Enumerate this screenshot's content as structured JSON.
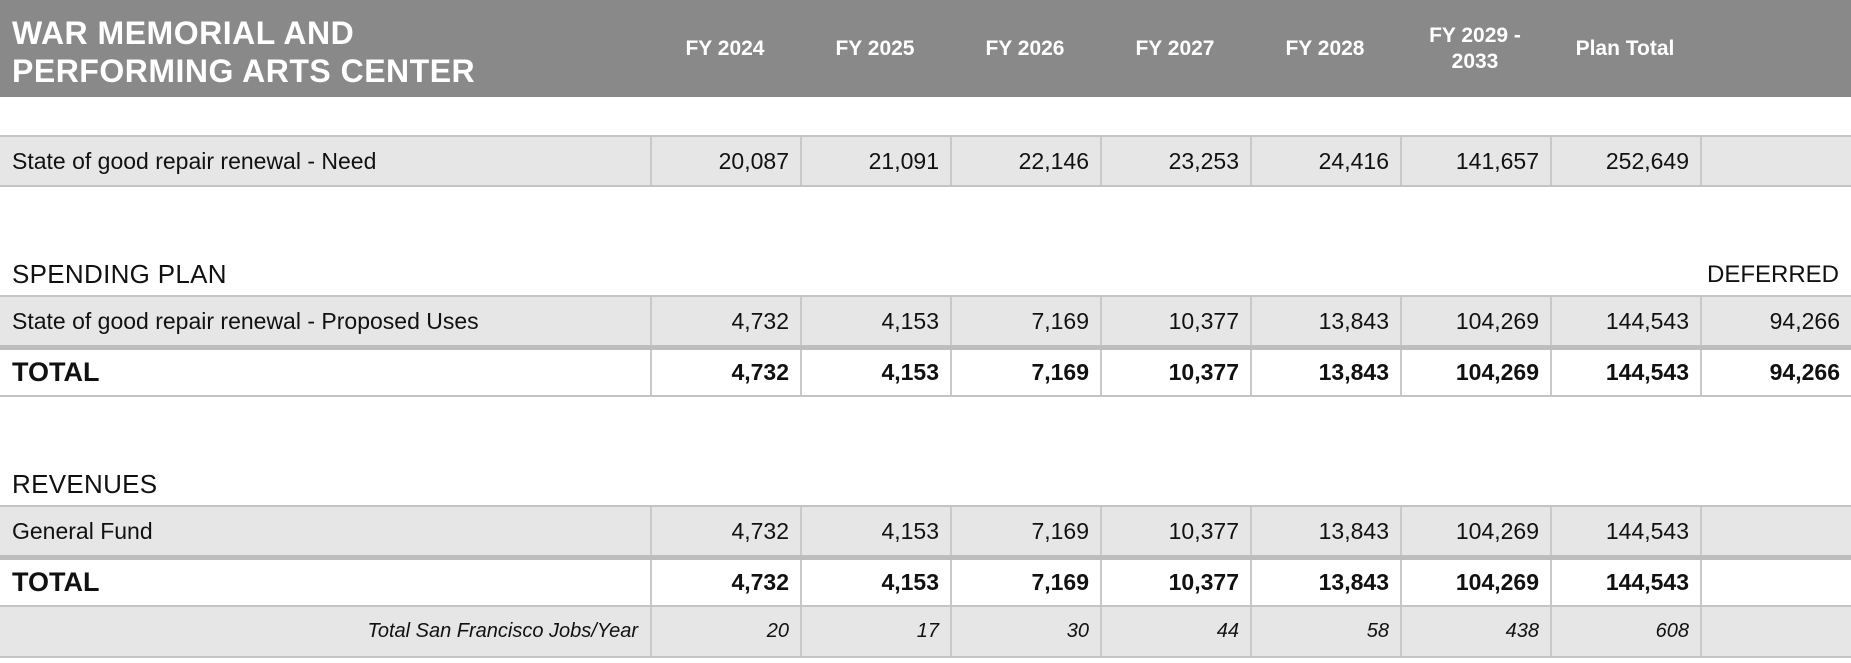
{
  "header": {
    "title_line1": "WAR MEMORIAL AND",
    "title_line2": "PERFORMING ARTS CENTER",
    "columns": [
      "FY 2024",
      "FY 2025",
      "FY 2026",
      "FY 2027",
      "FY 2028",
      "FY 2029 -\n2033",
      "Plan Total"
    ]
  },
  "need_row": {
    "label": "State of good repair renewal - Need",
    "values": [
      "20,087",
      "21,091",
      "22,146",
      "23,253",
      "24,416",
      "141,657",
      "252,649",
      ""
    ]
  },
  "spending": {
    "title": "SPENDING PLAN",
    "deferred_label": "DEFERRED",
    "proposed": {
      "label": "State of good repair renewal - Proposed Uses",
      "values": [
        "4,732",
        "4,153",
        "7,169",
        "10,377",
        "13,843",
        "104,269",
        "144,543",
        "94,266"
      ]
    },
    "total": {
      "label": "TOTAL",
      "values": [
        "4,732",
        "4,153",
        "7,169",
        "10,377",
        "13,843",
        "104,269",
        "144,543",
        "94,266"
      ]
    }
  },
  "revenues": {
    "title": "REVENUES",
    "general_fund": {
      "label": "General Fund",
      "values": [
        "4,732",
        "4,153",
        "7,169",
        "10,377",
        "13,843",
        "104,269",
        "144,543",
        ""
      ]
    },
    "total": {
      "label": "TOTAL",
      "values": [
        "4,732",
        "4,153",
        "7,169",
        "10,377",
        "13,843",
        "104,269",
        "144,543",
        ""
      ]
    },
    "jobs": {
      "label": "Total San Francisco Jobs/Year",
      "values": [
        "20",
        "17",
        "30",
        "44",
        "58",
        "438",
        "608",
        ""
      ]
    }
  }
}
